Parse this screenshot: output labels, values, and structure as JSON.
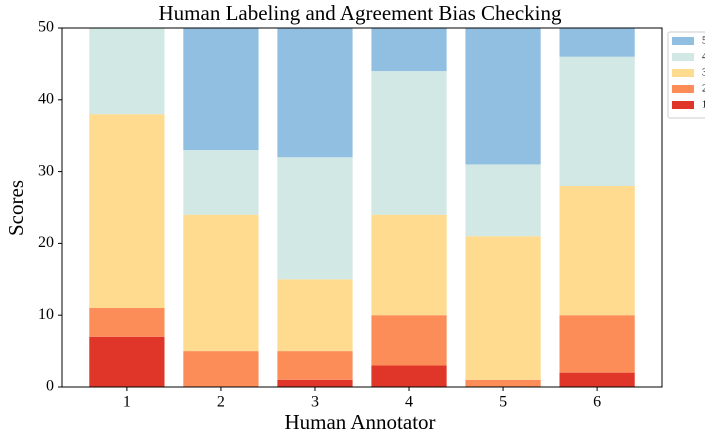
{
  "chart_data": {
    "type": "bar",
    "stacked": true,
    "title": "Human Labeling and Agreement Bias Checking",
    "xlabel": "Human Annotator",
    "ylabel": "Scores",
    "categories": [
      "1",
      "2",
      "3",
      "4",
      "5",
      "6"
    ],
    "series": [
      {
        "name": "1",
        "color": "#e0362a",
        "values": [
          7,
          0,
          1,
          3,
          0,
          2
        ]
      },
      {
        "name": "2",
        "color": "#fc8d59",
        "values": [
          4,
          5,
          4,
          7,
          1,
          8
        ]
      },
      {
        "name": "3",
        "color": "#fedb8f",
        "values": [
          27,
          19,
          10,
          14,
          20,
          18
        ]
      },
      {
        "name": "4",
        "color": "#d1e8e4",
        "values": [
          12,
          9,
          17,
          20,
          10,
          18
        ]
      },
      {
        "name": "5",
        "color": "#91bfe2",
        "values": [
          0,
          17,
          18,
          6,
          19,
          4
        ]
      }
    ],
    "ylim": [
      0,
      50
    ],
    "yticks": [
      0,
      10,
      20,
      30,
      40,
      50
    ],
    "legend": "upper right outside"
  }
}
